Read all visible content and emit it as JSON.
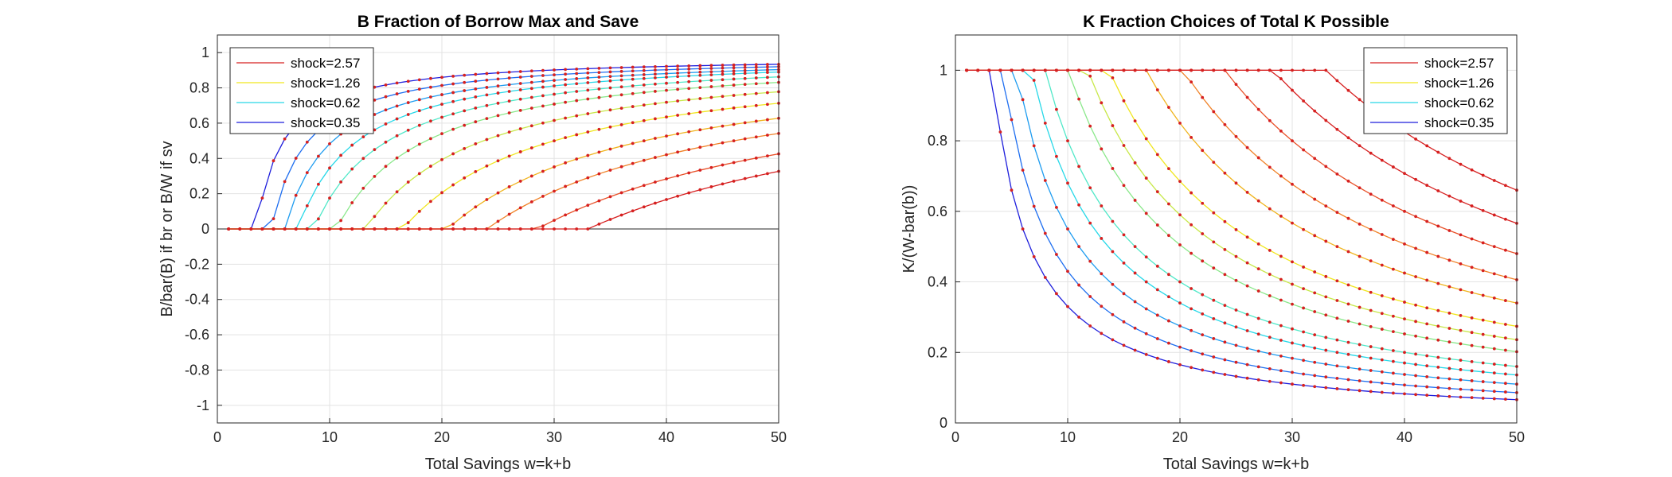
{
  "charts": [
    {
      "id": "left",
      "type": "line",
      "title": "B Fraction of Borrow Max and Save",
      "xlabel": "Total Savings w=k+b",
      "ylabel": "B/bar(B) if br or B/W if sv",
      "xlim": [
        0,
        50
      ],
      "ylim": [
        -1.1,
        1.1
      ],
      "xticks": [
        0,
        10,
        20,
        30,
        40,
        50
      ],
      "yticks": [
        -1,
        -0.8,
        -0.6,
        -0.4,
        -0.2,
        0,
        0.2,
        0.4,
        0.6,
        0.8,
        1
      ],
      "grid": true,
      "legend_position": "top-left",
      "legend": [
        {
          "label": "shock=2.57",
          "color": "#d62020"
        },
        {
          "label": "shock=1.26",
          "color": "#f0e61e"
        },
        {
          "label": "shock=0.62",
          "color": "#27d8e8"
        },
        {
          "label": "shock=0.35",
          "color": "#1e1edc"
        }
      ],
      "zero_line": true
    },
    {
      "id": "right",
      "type": "line",
      "title": "K Fraction Choices of Total K Possible",
      "xlabel": "Total Savings w=k+b",
      "ylabel": "K/(W-bar(b))",
      "xlim": [
        0,
        50
      ],
      "ylim": [
        0,
        1.1
      ],
      "xticks": [
        0,
        10,
        20,
        30,
        40,
        50
      ],
      "yticks": [
        0,
        0.2,
        0.4,
        0.6,
        0.8,
        1
      ],
      "grid": true,
      "legend_position": "top-right",
      "legend": [
        {
          "label": "shock=2.57",
          "color": "#d62020"
        },
        {
          "label": "shock=1.26",
          "color": "#f0e61e"
        },
        {
          "label": "shock=0.62",
          "color": "#27d8e8"
        },
        {
          "label": "shock=0.35",
          "color": "#1e1edc"
        }
      ]
    }
  ],
  "chart_data": [
    {
      "type": "line",
      "title": "B Fraction of Borrow Max and Save",
      "xlabel": "Total Savings w=k+b",
      "ylabel": "B/bar(B) if br or B/W if sv",
      "xlim": [
        0,
        50
      ],
      "ylim": [
        -1.1,
        1.1
      ],
      "series_model": "y = 0 for w <= w0; y = ymax*(w-w0)/(w-w0+c) for w > w0; points at w = 1..50 step 1",
      "series": [
        {
          "color": "#1e1edc",
          "w0": 3.5,
          "ymax": 0.98,
          "c": 2.3
        },
        {
          "color": "#1e6ef0",
          "w0": 4.8,
          "ymax": 0.985,
          "c": 3.2
        },
        {
          "color": "#1e9cf0",
          "w0": 6.0,
          "ymax": 0.99,
          "c": 4.2
        },
        {
          "color": "#27d8e8",
          "w0": 7.2,
          "ymax": 1.0,
          "c": 5.3
        },
        {
          "color": "#50e8c8",
          "w0": 8.6,
          "ymax": 1.0,
          "c": 6.6
        },
        {
          "color": "#8ae88a",
          "w0": 10.6,
          "ymax": 1.0,
          "c": 8.0
        },
        {
          "color": "#c8e84a",
          "w0": 13.2,
          "ymax": 1.0,
          "c": 10.5
        },
        {
          "color": "#f0e61e",
          "w0": 16.5,
          "ymax": 1.0,
          "c": 13.5
        },
        {
          "color": "#f0b41e",
          "w0": 20.5,
          "ymax": 1.0,
          "c": 17.5
        },
        {
          "color": "#f08228",
          "w0": 24.0,
          "ymax": 1.0,
          "c": 22.0
        },
        {
          "color": "#e85028",
          "w0": 28.5,
          "ymax": 1.0,
          "c": 29.0
        },
        {
          "color": "#d62020",
          "w0": 33.0,
          "ymax": 1.0,
          "c": 35.0
        }
      ]
    },
    {
      "type": "line",
      "title": "K Fraction Choices of Total K Possible",
      "xlabel": "Total Savings w=k+b",
      "ylabel": "K/(W-bar(b))",
      "xlim": [
        0,
        50
      ],
      "ylim": [
        0,
        1.1
      ],
      "series_model": "y = 1 for w <= w0; y = w0/w for w > w0; points at w = 1..50 step 1",
      "series": [
        {
          "color": "#1e1edc",
          "w0": 3.3
        },
        {
          "color": "#1e6ef0",
          "w0": 4.3
        },
        {
          "color": "#1e9cf0",
          "w0": 5.5
        },
        {
          "color": "#27d8e8",
          "w0": 6.8
        },
        {
          "color": "#50e8c8",
          "w0": 8.0
        },
        {
          "color": "#8ae88a",
          "w0": 10.1
        },
        {
          "color": "#c8e84a",
          "w0": 11.8
        },
        {
          "color": "#f0e61e",
          "w0": 13.7
        },
        {
          "color": "#f0b41e",
          "w0": 17.0
        },
        {
          "color": "#f08228",
          "w0": 20.3
        },
        {
          "color": "#e85028",
          "w0": 24.0
        },
        {
          "color": "#d62020",
          "w0": 28.3
        },
        {
          "color": "#d62020",
          "w0": 33.0
        }
      ]
    }
  ]
}
